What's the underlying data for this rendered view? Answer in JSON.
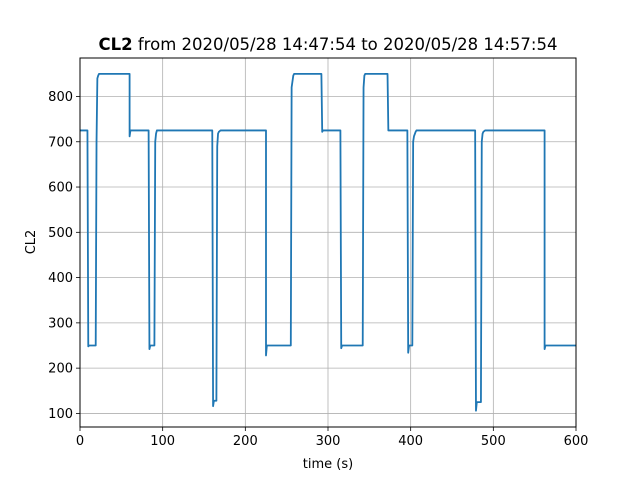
{
  "chart_data": {
    "type": "line",
    "title_bold": "CL2",
    "title_rest": " from 2020/05/28 14:47:54 to 2020/05/28 14:57:54",
    "xlabel": "time (s)",
    "ylabel": "CL2",
    "xlim": [
      0,
      600
    ],
    "ylim": [
      70,
      885
    ],
    "xticks": [
      0,
      100,
      200,
      300,
      400,
      500,
      600
    ],
    "yticks": [
      100,
      200,
      300,
      400,
      500,
      600,
      700,
      800
    ],
    "grid": true,
    "line_color": "#1f77b4",
    "series": [
      {
        "x": [
          0,
          9,
          10,
          11,
          19,
          20,
          21,
          22,
          23,
          25,
          60,
          60,
          61,
          83,
          84,
          85,
          90,
          91,
          92,
          93,
          160,
          161,
          162,
          165,
          166,
          167,
          168,
          170,
          225,
          225,
          226,
          227,
          228,
          255,
          256,
          258,
          259,
          260,
          292,
          293,
          294,
          315,
          316,
          317,
          342,
          343,
          344,
          345,
          346,
          372,
          373,
          374,
          396,
          397,
          398,
          402,
          403,
          404,
          406,
          407,
          478,
          479,
          480,
          485,
          486,
          487,
          488,
          490,
          562,
          562,
          563,
          564,
          600
        ],
        "y": [
          725,
          725,
          248,
          250,
          250,
          700,
          840,
          846,
          850,
          850,
          850,
          712,
          725,
          725,
          242,
          250,
          250,
          700,
          718,
          725,
          725,
          116,
          128,
          128,
          690,
          718,
          722,
          725,
          725,
          228,
          250,
          250,
          250,
          250,
          820,
          846,
          850,
          850,
          850,
          722,
          725,
          725,
          244,
          250,
          250,
          820,
          846,
          850,
          850,
          850,
          725,
          725,
          725,
          234,
          250,
          250,
          700,
          712,
          722,
          725,
          725,
          106,
          125,
          125,
          700,
          718,
          722,
          725,
          725,
          242,
          250,
          250,
          250
        ]
      }
    ]
  }
}
